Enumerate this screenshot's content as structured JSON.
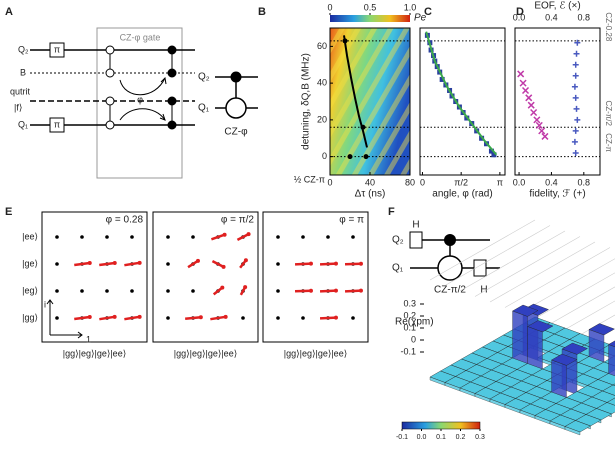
{
  "panel_labels": [
    "A",
    "B",
    "C",
    "D",
    "E",
    "F"
  ],
  "panel_a": {
    "gate_title": "CZ-φ gate",
    "q2": "Q₂",
    "pi_top": "π",
    "b": "B",
    "qutrit": "qutrit",
    "f_state": "|f⟩",
    "q1": "Q₁",
    "pi_bottom": "π",
    "phi": "φ",
    "right_q2": "Q₂",
    "right_q1": "Q₁",
    "caption": "CZ-φ"
  },
  "chart_data": [
    {
      "type": "line",
      "x_label": "Δτ (ns)",
      "y_label": "detuning, δQ,B (MHz)",
      "annotation": "½ CZ-π",
      "xlim": [
        0,
        80
      ],
      "ylim": [
        -10,
        70
      ],
      "xticks": [
        0,
        40,
        80
      ],
      "yticks": [
        0,
        20,
        40,
        60
      ],
      "reference_lines": [
        63,
        16,
        0
      ],
      "colorbar": {
        "label": "Pe",
        "lim": [
          0,
          1
        ],
        "ticks": [
          0,
          0.5,
          {
            "value": 1,
            "label": "1.0"
          }
        ]
      },
      "series": [
        {
          "style": "line",
          "color": "#000000",
          "x": [
            14,
            17,
            21,
            25,
            29,
            33,
            37
          ],
          "values": [
            66,
            55,
            43,
            32,
            22,
            14,
            5
          ]
        },
        {
          "style": "dot",
          "color": "#000000",
          "x": [
            15,
            33,
            20,
            36
          ],
          "values": [
            63,
            16,
            0,
            0
          ]
        }
      ]
    },
    {
      "type": "scatter",
      "x_label": "angle, φ (rad)",
      "xlim": [
        -0.1,
        3.35
      ],
      "ylim": [
        -10,
        70
      ],
      "xticks": [
        0,
        {
          "value": 1.5708,
          "label": "π/2"
        },
        {
          "value": 3.1416,
          "label": "π"
        }
      ],
      "reference_lines": [
        63,
        16,
        0
      ],
      "series": [
        {
          "style": "square",
          "color": "#2a3f9e",
          "x": [
            0.2,
            0.3,
            0.35,
            0.45,
            0.5,
            0.6,
            0.7,
            0.8,
            0.95,
            1.1,
            1.2,
            1.35,
            1.5,
            1.65,
            1.8,
            2.0,
            2.2,
            2.4,
            2.6,
            2.8,
            2.9
          ],
          "values": [
            66,
            62,
            58,
            55,
            52,
            49,
            46,
            42,
            39,
            36,
            33,
            30,
            27,
            24,
            21,
            18,
            14,
            10,
            7,
            3,
            1
          ]
        },
        {
          "style": "line",
          "color": "#3aa84a",
          "x": [
            0.15,
            0.5,
            1.0,
            1.5,
            2.0,
            2.5,
            3.0
          ],
          "values": [
            68,
            52,
            38,
            27,
            18,
            9,
            1
          ]
        }
      ]
    },
    {
      "type": "scatter",
      "x_label": "fidelity, ℱ (+)",
      "x_label_top": "EOF, ℰ (×)",
      "xlim": [
        -0.05,
        1.0
      ],
      "ylim": [
        -10,
        70
      ],
      "xticks": [
        {
          "value": 0,
          "label": "0.0"
        },
        0.4,
        0.8
      ],
      "reference_lines": [
        63,
        16,
        0
      ],
      "reference_labels": [
        "CZ-0.28",
        "CZ-π/2",
        "CZ-π"
      ],
      "series": [
        {
          "style": "cross",
          "color": "#c03aa8",
          "x": [
            0.02,
            0.05,
            0.08,
            0.12,
            0.15,
            0.18,
            0.22,
            0.25,
            0.28,
            0.32
          ],
          "values": [
            45,
            40,
            36,
            32,
            28,
            24,
            20,
            17,
            14,
            11
          ]
        },
        {
          "style": "plus",
          "color": "#4a5ac0",
          "x": [
            0.72,
            0.71,
            0.7,
            0.7,
            0.69,
            0.7,
            0.71,
            0.72,
            0.7,
            0.69,
            0.7
          ],
          "values": [
            62,
            56,
            50,
            44,
            38,
            32,
            26,
            20,
            14,
            8,
            2
          ]
        }
      ]
    }
  ],
  "panel_e": {
    "y_labels": [
      "|ee⟩",
      "|ge⟩",
      "|eg⟩",
      "|gg⟩"
    ],
    "axis_i": "i",
    "axis_1": "1",
    "plots": [
      {
        "phi": "φ = 0.28",
        "x_label": "|gg⟩|eg⟩|ge⟩|ee⟩"
      },
      {
        "phi": "φ = π/2",
        "x_label": "|gg⟩|eg⟩|ge⟩|ee⟩"
      },
      {
        "phi": "φ = π",
        "x_label": "|gg⟩|eg⟩|ge⟩|ee⟩"
      }
    ]
  },
  "panel_f": {
    "h_top": "H",
    "q2": "Q₂",
    "q1": "Q₁",
    "gate": "CZ-π/2",
    "h_bottom": "H",
    "z_label": "Re(χpm)",
    "z_ticks": [
      0.3,
      0.2,
      0.1,
      0,
      -0.1
    ],
    "colorbar_ticks": [
      -0.1,
      {
        "value": 0,
        "label": "0.0"
      },
      0.1,
      0.2,
      0.3
    ]
  }
}
